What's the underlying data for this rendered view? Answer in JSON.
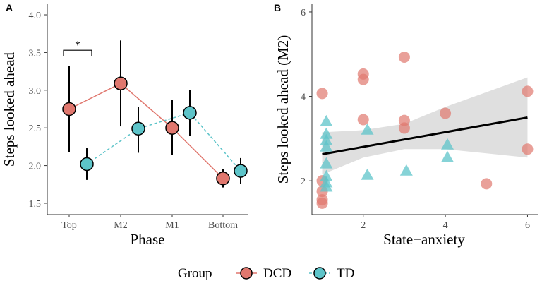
{
  "colors": {
    "dcd": "#E0776E",
    "td": "#5DC4C9",
    "ci_band": "#D9D9D9",
    "fit_line": "#000000",
    "axis": "#333333"
  },
  "legend": {
    "title": "Group",
    "items": [
      "DCD",
      "TD"
    ]
  },
  "chart_data": [
    {
      "panel": "A",
      "type": "line",
      "xlabel": "Phase",
      "ylabel": "Steps looked ahead",
      "categories": [
        "Top",
        "M2",
        "M1",
        "Bottom"
      ],
      "ylim": [
        1.35,
        4.15
      ],
      "yticks": [
        1.5,
        2.0,
        2.5,
        3.0,
        3.5,
        4.0
      ],
      "ytick_labels": [
        "1.5",
        "2.0",
        "2.5",
        "3.0",
        "3.5",
        "4.0"
      ],
      "series": [
        {
          "name": "DCD",
          "values": [
            2.75,
            3.09,
            2.5,
            1.83
          ],
          "lower": [
            2.18,
            2.52,
            2.14,
            1.71
          ],
          "upper": [
            3.32,
            3.66,
            2.87,
            1.95
          ],
          "line_style": "solid"
        },
        {
          "name": "TD",
          "values": [
            2.02,
            2.49,
            2.7,
            1.93
          ],
          "lower": [
            1.81,
            2.17,
            2.39,
            1.76
          ],
          "upper": [
            2.23,
            2.78,
            3.0,
            2.1
          ],
          "line_style": "dashed"
        }
      ],
      "annotations": [
        {
          "text": "*",
          "between": [
            "Top DCD",
            "Top TD"
          ],
          "y": 3.53
        }
      ]
    },
    {
      "panel": "B",
      "type": "scatter",
      "xlabel": "State−anxiety",
      "ylabel": "Steps looked ahead (M2)",
      "xlim": [
        0.75,
        6.25
      ],
      "ylim": [
        1.2,
        6.2
      ],
      "xticks": [
        2,
        4,
        6
      ],
      "xtick_labels": [
        "2",
        "4",
        "6"
      ],
      "yticks": [
        2,
        4,
        6
      ],
      "ytick_labels": [
        "2",
        "4",
        "6"
      ],
      "series": [
        {
          "name": "DCD",
          "marker": "circle",
          "points": [
            [
              1,
              4.07
            ],
            [
              1,
              2.0
            ],
            [
              1,
              1.75
            ],
            [
              1,
              1.55
            ],
            [
              1,
              1.47
            ],
            [
              2,
              4.53
            ],
            [
              2,
              4.4
            ],
            [
              2,
              3.45
            ],
            [
              3,
              4.93
            ],
            [
              3,
              3.43
            ],
            [
              3,
              3.25
            ],
            [
              4,
              3.6
            ],
            [
              5,
              1.93
            ],
            [
              6,
              4.12
            ],
            [
              6,
              2.75
            ]
          ]
        },
        {
          "name": "TD",
          "marker": "triangle",
          "points": [
            [
              1.1,
              3.4
            ],
            [
              1.1,
              3.1
            ],
            [
              1.1,
              2.95
            ],
            [
              1.1,
              2.8
            ],
            [
              1.1,
              2.4
            ],
            [
              1.1,
              2.1
            ],
            [
              1.1,
              1.95
            ],
            [
              1.1,
              1.85
            ],
            [
              2.1,
              3.2
            ],
            [
              2.1,
              2.13
            ],
            [
              3.05,
              2.23
            ],
            [
              4.05,
              2.85
            ],
            [
              4.05,
              2.55
            ]
          ]
        }
      ],
      "fit": {
        "x": [
          1,
          6
        ],
        "y": [
          2.63,
          3.5
        ]
      },
      "band": [
        [
          1,
          2.15,
          3.15
        ],
        [
          2,
          2.55,
          3.2
        ],
        [
          3,
          2.75,
          3.35
        ],
        [
          4,
          2.75,
          3.75
        ],
        [
          5,
          2.65,
          4.1
        ],
        [
          6,
          2.55,
          4.45
        ]
      ]
    }
  ]
}
